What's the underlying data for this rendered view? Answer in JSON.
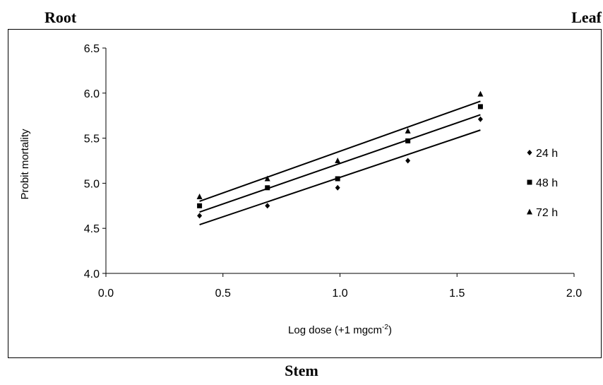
{
  "headings": {
    "top_left": "Root",
    "top_right": "Leaf",
    "bottom": "Stem"
  },
  "chart_data": {
    "type": "scatter",
    "xlabel": "Log dose (+1 mgcm",
    "xlabel_sup": "-2",
    "xlabel_end": ")",
    "ylabel": "Probit mortality",
    "xlim": [
      0,
      2
    ],
    "ylim": [
      4,
      6.5
    ],
    "xticks": [
      "0.0",
      "0.5",
      "1.0",
      "1.5",
      "2.0"
    ],
    "yticks": [
      "4.0",
      "4.5",
      "5.0",
      "5.5",
      "6.0",
      "6.5"
    ],
    "grid": false,
    "legend_position": "right",
    "x": [
      0.4,
      0.69,
      0.99,
      1.29,
      1.6
    ],
    "series": [
      {
        "name": "24 h",
        "marker": "diamond",
        "values": [
          4.64,
          4.75,
          4.95,
          5.25,
          5.71
        ],
        "fit": [
          4.54,
          5.59
        ]
      },
      {
        "name": "48 h",
        "marker": "square",
        "values": [
          4.75,
          4.95,
          5.05,
          5.47,
          5.85
        ],
        "fit": [
          4.68,
          5.76
        ]
      },
      {
        "name": "72 h",
        "marker": "triangle",
        "values": [
          4.85,
          5.05,
          5.25,
          5.58,
          5.99
        ],
        "fit": [
          4.8,
          5.91
        ]
      }
    ],
    "colors": {
      "ink": "#000000",
      "background": "#ffffff"
    }
  }
}
